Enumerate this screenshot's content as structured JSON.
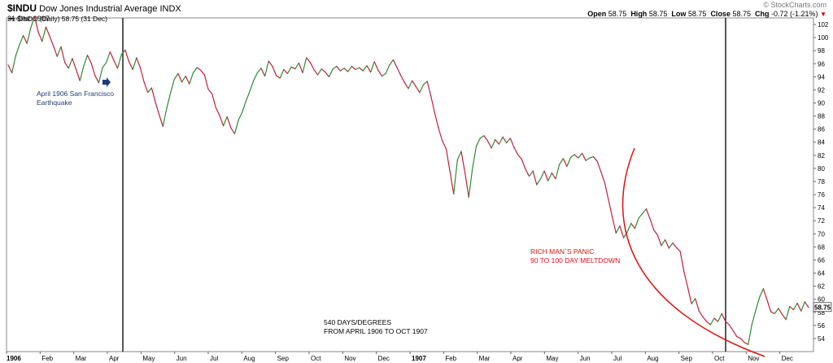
{
  "header": {
    "symbol": "$INDU",
    "name": "Dow Jones Industrial Average",
    "exchange": "INDX",
    "date": "31-Dec-1907",
    "watermark": "© StockCharts.com",
    "quote": {
      "open_label": "Open",
      "open": "58.75",
      "high_label": "High",
      "high": "58.75",
      "low_label": "Low",
      "low": "58.75",
      "close_label": "Close",
      "close": "58.75",
      "chg_label": "Chg",
      "chg": "-0.72 (-1.21%)"
    }
  },
  "chart_data": {
    "type": "line",
    "legend_label": "$INDU (Daily) 58.75 (31 Dec)",
    "last_value_tag": "58.75",
    "ylim": [
      52,
      103
    ],
    "yticks": [
      54,
      56,
      58,
      60,
      62,
      64,
      66,
      68,
      70,
      72,
      74,
      76,
      78,
      80,
      82,
      84,
      86,
      88,
      90,
      92,
      94,
      96,
      98,
      100,
      102
    ],
    "xlabels": [
      "1906",
      "Feb",
      "Mar",
      "Apr",
      "May",
      "Jun",
      "Jul",
      "Aug",
      "Sep",
      "Oct",
      "Nov",
      "Dec",
      "1907",
      "Feb",
      "Mar",
      "Apr",
      "May",
      "Jun",
      "Jul",
      "Aug",
      "Sep",
      "Oct",
      "Nov",
      "Dec"
    ],
    "grid": false,
    "series": [
      {
        "values": [
          95.8,
          94.6,
          97.2,
          98.9,
          100.3,
          99.1,
          101.5,
          103.2,
          100.8,
          99.4,
          101.6,
          100.2,
          98.7,
          97.1,
          98.6,
          96.2,
          95.3,
          96.8,
          95.1,
          93.4,
          95.6,
          97.3,
          96.1,
          94.2,
          93.1,
          95.4,
          96.2,
          97.8,
          96.5,
          95.3,
          97.4,
          98.1,
          96.3,
          95.1,
          96.9,
          95.4,
          93.2,
          91.6,
          92.3,
          90.1,
          88.2,
          86.4,
          89.2,
          91.5,
          93.6,
          94.5,
          93.2,
          94.1,
          92.9,
          94.6,
          95.4,
          95.0,
          94.3,
          92.1,
          91.4,
          89.3,
          88.1,
          86.5,
          87.9,
          86.2,
          85.3,
          87.4,
          88.6,
          90.3,
          91.8,
          93.4,
          94.6,
          95.3,
          94.1,
          96.4,
          95.6,
          94.2,
          93.8,
          95.1,
          94.5,
          95.5,
          95.2,
          96.1,
          94.6,
          96.9,
          96.2,
          95.1,
          94.3,
          95.2,
          94.7,
          94.0,
          95.2,
          95.6,
          94.9,
          95.3,
          94.8,
          95.6,
          95.1,
          95.4,
          94.9,
          95.7,
          94.7,
          96.3,
          95.0,
          94.1,
          94.5,
          95.8,
          96.6,
          95.4,
          94.2,
          93.1,
          92.2,
          93.4,
          92.5,
          91.6,
          92.8,
          93.3,
          91.0,
          88.4,
          86.1,
          84.2,
          83.0,
          79.6,
          76.1,
          81.3,
          82.6,
          79.3,
          75.6,
          80.1,
          83.4,
          84.6,
          85.0,
          84.2,
          83.1,
          84.4,
          83.7,
          84.8,
          83.9,
          84.6,
          83.2,
          82.1,
          81.4,
          79.9,
          78.8,
          79.6,
          77.5,
          78.4,
          79.6,
          78.1,
          79.3,
          78.4,
          80.6,
          81.5,
          80.3,
          81.7,
          82.1,
          81.6,
          82.3,
          81.2,
          81.6,
          81.8,
          81.1,
          79.5,
          77.8,
          75.2,
          72.6,
          70.1,
          71.2,
          69.4,
          70.3,
          71.6,
          70.8,
          72.4,
          73.1,
          73.8,
          72.3,
          70.6,
          69.8,
          68.2,
          69.1,
          67.8,
          68.6,
          67.9,
          67.3,
          64.2,
          61.8,
          59.3,
          60.1,
          58.2,
          57.3,
          56.6,
          56.1,
          57.1,
          56.6,
          57.8,
          56.6,
          56.1,
          55.2,
          54.3,
          54.0,
          53.4,
          53.1,
          56.2,
          58.3,
          60.3,
          61.6,
          59.9,
          58.1,
          57.8,
          58.6,
          57.7,
          56.9,
          58.9,
          58.4,
          59.4,
          58.2,
          59.6,
          58.75
        ]
      }
    ],
    "annotations": {
      "earthquake": "April 1906 San Francisco Earthquake",
      "panic_line1": "RICH MAN`S PANIC",
      "panic_line2": "90 TO 100 DAY MELTDOWN",
      "days_line1": "540 DAYS/DEGREES",
      "days_line2": "FROM APRIL 1906 TO OCT 1907"
    }
  }
}
